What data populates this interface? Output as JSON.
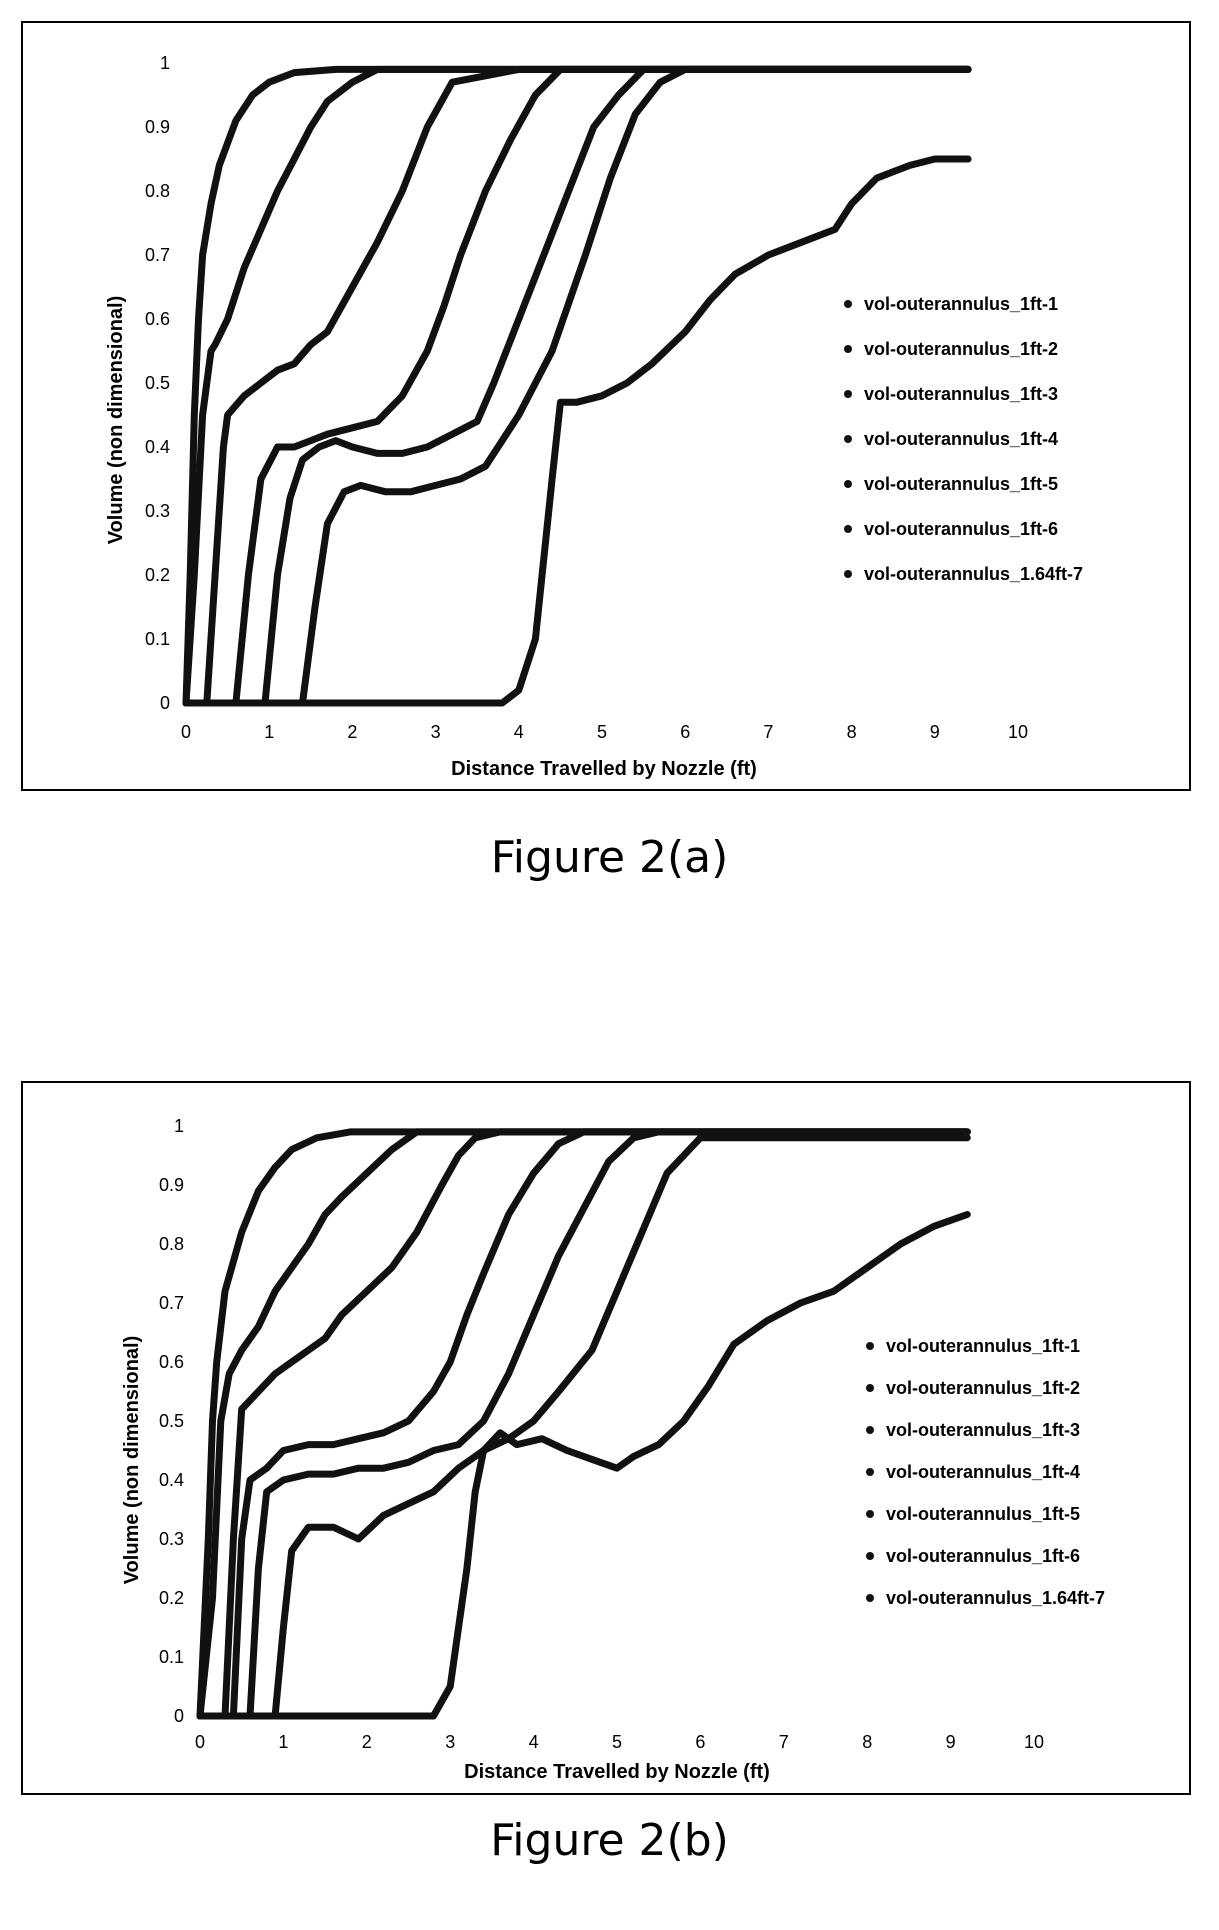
{
  "chart_data": [
    {
      "type": "line",
      "caption": "Figure 2(a)",
      "xlabel": "Distance Travelled by Nozzle (ft)",
      "ylabel": "Volume (non dimensional)",
      "xlim": [
        0,
        10
      ],
      "ylim": [
        0,
        1
      ],
      "xticks": [
        "0",
        "1",
        "2",
        "3",
        "4",
        "5",
        "6",
        "7",
        "8",
        "9",
        "10"
      ],
      "yticks": [
        "0",
        "0.1",
        "0.2",
        "0.3",
        "0.4",
        "0.5",
        "0.6",
        "0.7",
        "0.8",
        "0.9",
        "1"
      ],
      "grid": false,
      "legend_position": "right",
      "line_color": "#111111",
      "series": [
        {
          "name": "vol-outerannulus_1ft-1",
          "x": [
            0,
            0.05,
            0.1,
            0.15,
            0.2,
            0.3,
            0.4,
            0.6,
            0.8,
            1.0,
            1.3,
            1.8,
            3,
            5,
            9.4
          ],
          "y": [
            0,
            0.2,
            0.45,
            0.6,
            0.7,
            0.78,
            0.84,
            0.91,
            0.95,
            0.97,
            0.985,
            0.99,
            0.99,
            0.99,
            0.99
          ]
        },
        {
          "name": "vol-outerannulus_1ft-2",
          "x": [
            0,
            0.1,
            0.2,
            0.3,
            0.35,
            0.5,
            0.7,
            0.9,
            1.1,
            1.3,
            1.5,
            1.7,
            2.0,
            2.3,
            3,
            9.4
          ],
          "y": [
            0,
            0.2,
            0.45,
            0.55,
            0.56,
            0.6,
            0.68,
            0.74,
            0.8,
            0.85,
            0.9,
            0.94,
            0.97,
            0.99,
            0.99,
            0.99
          ]
        },
        {
          "name": "vol-outerannulus_1ft-3",
          "x": [
            0,
            0.25,
            0.35,
            0.45,
            0.5,
            0.7,
            0.9,
            1.1,
            1.3,
            1.5,
            1.7,
            2.0,
            2.3,
            2.6,
            2.9,
            3.2,
            4,
            9.4
          ],
          "y": [
            0,
            0,
            0.2,
            0.4,
            0.45,
            0.48,
            0.5,
            0.52,
            0.53,
            0.56,
            0.58,
            0.65,
            0.72,
            0.8,
            0.9,
            0.97,
            0.99,
            0.99
          ]
        },
        {
          "name": "vol-outerannulus_1ft-4",
          "x": [
            0,
            0.6,
            0.75,
            0.9,
            1.1,
            1.3,
            1.5,
            1.7,
            2.0,
            2.3,
            2.6,
            2.9,
            3.1,
            3.3,
            3.6,
            3.9,
            4.2,
            4.5,
            5,
            9.4
          ],
          "y": [
            0,
            0,
            0.2,
            0.35,
            0.4,
            0.4,
            0.41,
            0.42,
            0.43,
            0.44,
            0.48,
            0.55,
            0.62,
            0.7,
            0.8,
            0.88,
            0.95,
            0.99,
            0.99,
            0.99
          ]
        },
        {
          "name": "vol-outerannulus_1ft-5",
          "x": [
            0,
            0.95,
            1.1,
            1.25,
            1.4,
            1.6,
            1.8,
            2.0,
            2.3,
            2.6,
            2.9,
            3.2,
            3.5,
            3.7,
            4.0,
            4.3,
            4.6,
            4.9,
            5.2,
            5.5,
            6,
            9.4
          ],
          "y": [
            0,
            0,
            0.2,
            0.32,
            0.38,
            0.4,
            0.41,
            0.4,
            0.39,
            0.39,
            0.4,
            0.42,
            0.44,
            0.5,
            0.6,
            0.7,
            0.8,
            0.9,
            0.95,
            0.99,
            0.99,
            0.99
          ]
        },
        {
          "name": "vol-outerannulus_1ft-6",
          "x": [
            0,
            1.4,
            1.55,
            1.7,
            1.9,
            2.1,
            2.4,
            2.7,
            3.0,
            3.3,
            3.6,
            3.8,
            4.0,
            4.4,
            4.8,
            5.1,
            5.4,
            5.7,
            6.0,
            6.5,
            9.4
          ],
          "y": [
            0,
            0,
            0.15,
            0.28,
            0.33,
            0.34,
            0.33,
            0.33,
            0.34,
            0.35,
            0.37,
            0.41,
            0.45,
            0.55,
            0.7,
            0.82,
            0.92,
            0.97,
            0.99,
            0.99,
            0.99
          ]
        },
        {
          "name": "vol-outerannulus_1.64ft-7",
          "x": [
            0,
            3.8,
            4.0,
            4.2,
            4.4,
            4.5,
            4.7,
            5.0,
            5.3,
            5.6,
            6.0,
            6.3,
            6.6,
            7.0,
            7.4,
            7.8,
            8.0,
            8.3,
            8.7,
            9.0,
            9.4
          ],
          "y": [
            0,
            0,
            0.02,
            0.1,
            0.35,
            0.47,
            0.47,
            0.48,
            0.5,
            0.53,
            0.58,
            0.63,
            0.67,
            0.7,
            0.72,
            0.74,
            0.78,
            0.82,
            0.84,
            0.85,
            0.85
          ]
        }
      ]
    },
    {
      "type": "line",
      "caption": "Figure 2(b)",
      "xlabel": "Distance Travelled by Nozzle (ft)",
      "ylabel": "Volume (non dimensional)",
      "xlim": [
        0,
        10
      ],
      "ylim": [
        0,
        1
      ],
      "xticks": [
        "0",
        "1",
        "2",
        "3",
        "4",
        "5",
        "6",
        "7",
        "8",
        "9",
        "10"
      ],
      "yticks": [
        "0",
        "0.1",
        "0.2",
        "0.3",
        "0.4",
        "0.5",
        "0.6",
        "0.7",
        "0.8",
        "0.9",
        "1"
      ],
      "grid": false,
      "legend_position": "right",
      "line_color": "#111111",
      "series": [
        {
          "name": "vol-outerannulus_1ft-1",
          "x": [
            0,
            0.1,
            0.15,
            0.2,
            0.3,
            0.5,
            0.7,
            0.9,
            1.1,
            1.4,
            1.8,
            2.5,
            5,
            9.2
          ],
          "y": [
            0,
            0.3,
            0.5,
            0.6,
            0.72,
            0.82,
            0.89,
            0.93,
            0.96,
            0.98,
            0.99,
            0.99,
            0.99,
            0.99
          ]
        },
        {
          "name": "vol-outerannulus_1ft-2",
          "x": [
            0,
            0.15,
            0.25,
            0.35,
            0.5,
            0.7,
            0.9,
            1.1,
            1.3,
            1.5,
            1.7,
            2.0,
            2.3,
            2.6,
            3,
            9.2
          ],
          "y": [
            0,
            0.2,
            0.5,
            0.58,
            0.62,
            0.66,
            0.72,
            0.76,
            0.8,
            0.85,
            0.88,
            0.92,
            0.96,
            0.99,
            0.99,
            0.99
          ]
        },
        {
          "name": "vol-outerannulus_1ft-3",
          "x": [
            0,
            0.3,
            0.4,
            0.5,
            0.7,
            0.9,
            1.1,
            1.3,
            1.5,
            1.7,
            2.0,
            2.3,
            2.6,
            2.9,
            3.1,
            3.3,
            3.6,
            4,
            9.2
          ],
          "y": [
            0,
            0,
            0.3,
            0.52,
            0.55,
            0.58,
            0.6,
            0.62,
            0.64,
            0.68,
            0.72,
            0.76,
            0.82,
            0.9,
            0.95,
            0.98,
            0.99,
            0.99,
            0.99
          ]
        },
        {
          "name": "vol-outerannulus_1ft-4",
          "x": [
            0,
            0.4,
            0.5,
            0.6,
            0.8,
            1.0,
            1.3,
            1.6,
            1.9,
            2.2,
            2.5,
            2.8,
            3.0,
            3.2,
            3.4,
            3.7,
            4.0,
            4.3,
            4.6,
            5,
            9.2
          ],
          "y": [
            0,
            0,
            0.3,
            0.4,
            0.42,
            0.45,
            0.46,
            0.46,
            0.47,
            0.48,
            0.5,
            0.55,
            0.6,
            0.68,
            0.75,
            0.85,
            0.92,
            0.97,
            0.99,
            0.99,
            0.99
          ]
        },
        {
          "name": "vol-outerannulus_1ft-5",
          "x": [
            0,
            0.6,
            0.7,
            0.8,
            1.0,
            1.3,
            1.6,
            1.9,
            2.2,
            2.5,
            2.8,
            3.1,
            3.4,
            3.7,
            4.0,
            4.3,
            4.6,
            4.9,
            5.2,
            5.5,
            9.2
          ],
          "y": [
            0,
            0,
            0.25,
            0.38,
            0.4,
            0.41,
            0.41,
            0.42,
            0.42,
            0.43,
            0.45,
            0.46,
            0.5,
            0.58,
            0.68,
            0.78,
            0.86,
            0.94,
            0.98,
            0.99,
            0.99
          ]
        },
        {
          "name": "vol-outerannulus_1ft-6",
          "x": [
            0,
            0.9,
            1.0,
            1.1,
            1.3,
            1.6,
            1.9,
            2.2,
            2.5,
            2.8,
            3.1,
            3.4,
            3.7,
            4.0,
            4.3,
            4.7,
            5.0,
            5.3,
            5.6,
            6,
            9.2
          ],
          "y": [
            0,
            0,
            0.15,
            0.28,
            0.32,
            0.32,
            0.3,
            0.34,
            0.36,
            0.38,
            0.42,
            0.45,
            0.47,
            0.5,
            0.55,
            0.62,
            0.72,
            0.82,
            0.92,
            0.98,
            0.98
          ]
        },
        {
          "name": "vol-outerannulus_1.64ft-7",
          "x": [
            0,
            2.8,
            3.0,
            3.2,
            3.3,
            3.4,
            3.6,
            3.8,
            4.1,
            4.4,
            4.8,
            5.0,
            5.2,
            5.5,
            5.8,
            6.1,
            6.4,
            6.8,
            7.2,
            7.6,
            8.0,
            8.4,
            8.8,
            9.2
          ],
          "y": [
            0,
            0,
            0.05,
            0.25,
            0.38,
            0.45,
            0.48,
            0.46,
            0.47,
            0.45,
            0.43,
            0.42,
            0.44,
            0.46,
            0.5,
            0.56,
            0.63,
            0.67,
            0.7,
            0.72,
            0.76,
            0.8,
            0.83,
            0.85
          ]
        }
      ]
    }
  ]
}
